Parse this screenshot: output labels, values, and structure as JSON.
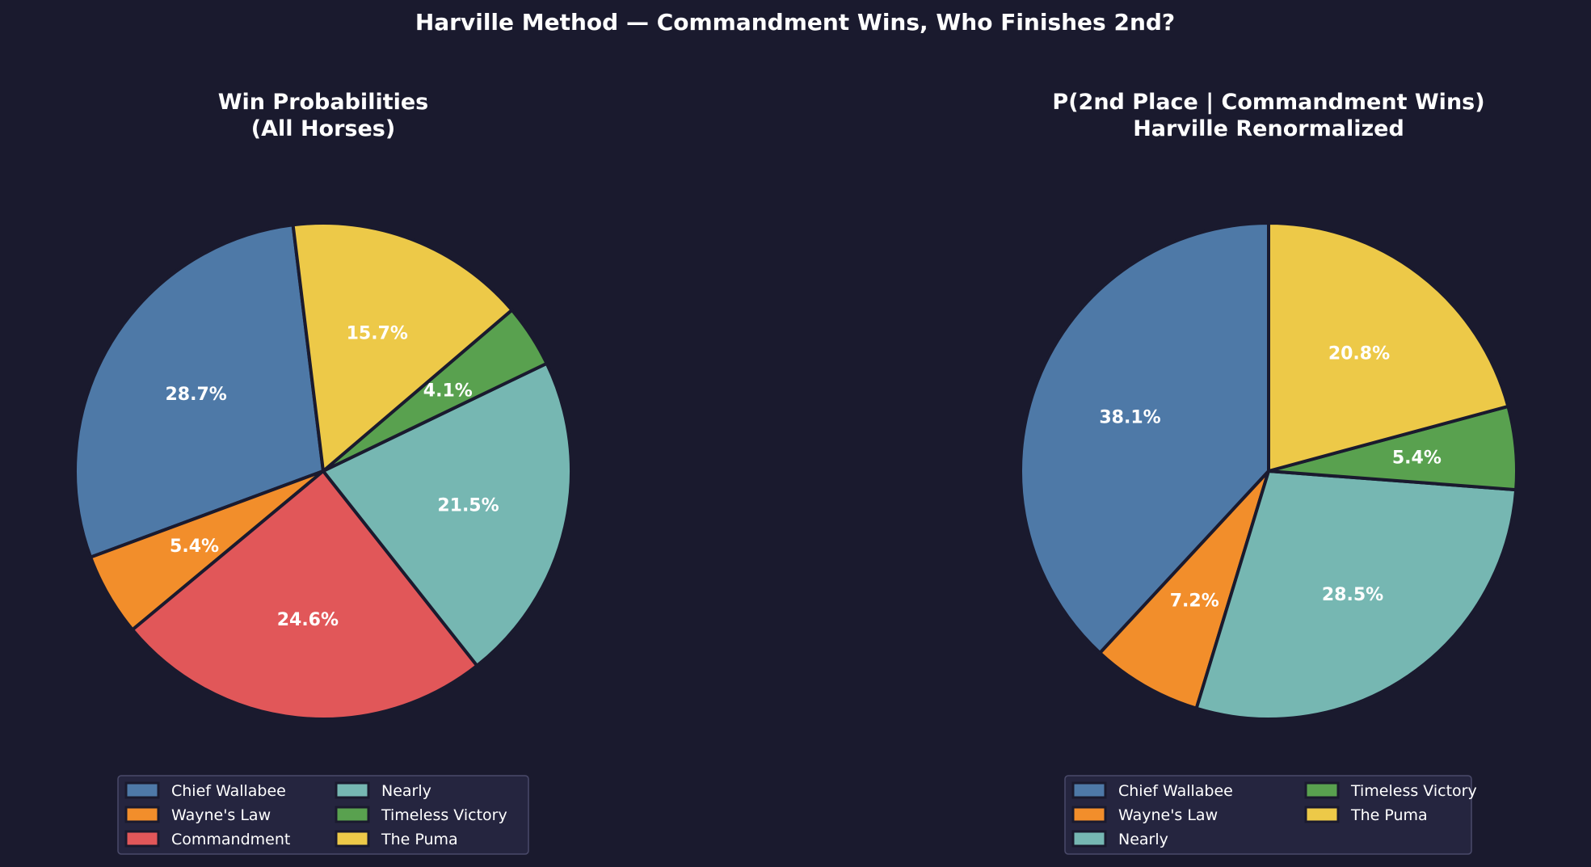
{
  "suptitle": "Harville Method — Commandment Wins, Who Finishes 2nd?",
  "chart_data": [
    {
      "type": "pie",
      "title": "Win Probabilities\n(All Horses)",
      "title_lines": [
        "Win Probabilities",
        "(All Horses)"
      ],
      "start_angle_deg": 97,
      "direction": "counterclockwise",
      "labels": [
        "Chief Wallabee",
        "Wayne's Law",
        "Commandment",
        "Nearly",
        "Timeless Victory",
        "The Puma"
      ],
      "pct_labels": [
        "28.7%",
        "5.4%",
        "24.6%",
        "21.5%",
        "4.1%",
        "15.7%"
      ],
      "values": [
        28.7,
        5.4,
        24.6,
        21.5,
        4.1,
        15.7
      ],
      "colors": [
        "#4e79a7",
        "#f28e2b",
        "#e15759",
        "#76b7b2",
        "#59a14f",
        "#edc948"
      ],
      "legend": {
        "placement": "lower-center",
        "columns": 2,
        "entries": [
          {
            "label": "Chief Wallabee",
            "color": "#4e79a7"
          },
          {
            "label": "Wayne's Law",
            "color": "#f28e2b"
          },
          {
            "label": "Commandment",
            "color": "#e15759"
          },
          {
            "label": "Nearly",
            "color": "#76b7b2"
          },
          {
            "label": "Timeless Victory",
            "color": "#59a14f"
          },
          {
            "label": "The Puma",
            "color": "#edc948"
          }
        ]
      }
    },
    {
      "type": "pie",
      "title": "P(2nd Place | Commandment Wins)\nHarville Renormalized",
      "title_lines": [
        "P(2nd Place | Commandment Wins)",
        "Harville Renormalized"
      ],
      "start_angle_deg": 90,
      "direction": "counterclockwise",
      "labels": [
        "Chief Wallabee",
        "Wayne's Law",
        "Nearly",
        "Timeless Victory",
        "The Puma"
      ],
      "pct_labels": [
        "38.1%",
        "7.2%",
        "28.5%",
        "5.4%",
        "20.8%"
      ],
      "values": [
        38.1,
        7.2,
        28.5,
        5.4,
        20.8
      ],
      "colors": [
        "#4e79a7",
        "#f28e2b",
        "#76b7b2",
        "#59a14f",
        "#edc948"
      ],
      "legend": {
        "placement": "lower-center",
        "columns": 2,
        "entries": [
          {
            "label": "Chief Wallabee",
            "color": "#4e79a7"
          },
          {
            "label": "Wayne's Law",
            "color": "#f28e2b"
          },
          {
            "label": "Nearly",
            "color": "#76b7b2"
          },
          {
            "label": "Timeless Victory",
            "color": "#59a14f"
          },
          {
            "label": "The Puma",
            "color": "#edc948"
          }
        ]
      }
    }
  ],
  "theme": {
    "background": "#1a1a2e",
    "wedge_edge": "#1a1a2e",
    "legend_bg": "#25253f",
    "legend_border": "#4a4a6a",
    "text": "#ffffff"
  }
}
